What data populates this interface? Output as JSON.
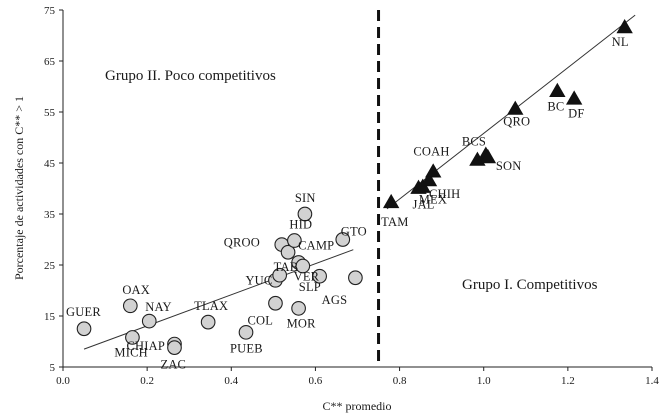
{
  "chart_data": {
    "type": "scatter",
    "xlabel": "C** promedio",
    "ylabel": "Porcentaje de actividades con C** > 1",
    "xlim": [
      0.0,
      1.4
    ],
    "ylim": [
      5,
      75
    ],
    "xticks": [
      "0.0",
      "0.2",
      "0.4",
      "0.6",
      "0.8",
      "1.0",
      "1.2",
      "1.4"
    ],
    "xtick_values": [
      0.0,
      0.2,
      0.4,
      0.6,
      0.8,
      1.0,
      1.2,
      1.4
    ],
    "yticks": [
      "5",
      "15",
      "25",
      "35",
      "45",
      "55",
      "65",
      "75"
    ],
    "ytick_values": [
      5,
      15,
      25,
      35,
      45,
      55,
      65,
      75
    ],
    "divider_x": 0.75,
    "group_labels": {
      "poco": "Grupo II. Poco competitivos",
      "competitivos": "Grupo I. Competitivos"
    },
    "series": [
      {
        "name": "Grupo II. Poco competitivos",
        "marker": "circle",
        "points": [
          {
            "label": "GUER",
            "x": 0.05,
            "y": 12.5
          },
          {
            "label": "OAX",
            "x": 0.16,
            "y": 17.0
          },
          {
            "label": "MICH",
            "x": 0.165,
            "y": 10.8
          },
          {
            "label": "NAY",
            "x": 0.205,
            "y": 14.0
          },
          {
            "label": "CHIAP",
            "x": 0.265,
            "y": 9.5
          },
          {
            "label": "ZAC",
            "x": 0.265,
            "y": 8.8
          },
          {
            "label": "TLAX",
            "x": 0.345,
            "y": 13.8
          },
          {
            "label": "PUEB",
            "x": 0.435,
            "y": 11.8
          },
          {
            "label": "COL",
            "x": 0.505,
            "y": 17.5
          },
          {
            "label": "YUC",
            "x": 0.505,
            "y": 22.0
          },
          {
            "label": "TAB",
            "x": 0.515,
            "y": 23.0
          },
          {
            "label": "QROO",
            "x": 0.52,
            "y": 29.0
          },
          {
            "label": "CAMP",
            "x": 0.535,
            "y": 27.5
          },
          {
            "label": "HID",
            "x": 0.55,
            "y": 29.8
          },
          {
            "label": "VER",
            "x": 0.56,
            "y": 25.5
          },
          {
            "label": "MOR",
            "x": 0.56,
            "y": 16.5
          },
          {
            "label": "SLP",
            "x": 0.57,
            "y": 24.8
          },
          {
            "label": "SIN",
            "x": 0.575,
            "y": 35.0
          },
          {
            "label": "AGS",
            "x": 0.61,
            "y": 22.8
          },
          {
            "label": "GTO",
            "x": 0.665,
            "y": 30.0
          },
          {
            "label": "",
            "x": 0.695,
            "y": 22.5
          }
        ],
        "trendline": {
          "x": [
            0.05,
            0.69
          ],
          "y": [
            8.5,
            28.0
          ]
        }
      },
      {
        "name": "Grupo I. Competitivos",
        "marker": "triangle",
        "points": [
          {
            "label": "TAM",
            "x": 0.78,
            "y": 37.2
          },
          {
            "label": "JAL",
            "x": 0.845,
            "y": 40.0
          },
          {
            "label": "MEX",
            "x": 0.855,
            "y": 40.2
          },
          {
            "label": "CHIH",
            "x": 0.87,
            "y": 41.5
          },
          {
            "label": "",
            "x": 0.88,
            "y": 43.2
          },
          {
            "label": "COAH",
            "x": 0.985,
            "y": 45.5
          },
          {
            "label": "BCS",
            "x": 1.005,
            "y": 46.5
          },
          {
            "label": "SON",
            "x": 1.01,
            "y": 46.0
          },
          {
            "label": "QRO",
            "x": 1.075,
            "y": 55.5
          },
          {
            "label": "BC",
            "x": 1.175,
            "y": 59.0
          },
          {
            "label": "DF",
            "x": 1.215,
            "y": 57.5
          },
          {
            "label": "NL",
            "x": 1.335,
            "y": 71.5
          }
        ],
        "trendline": {
          "x": [
            0.77,
            1.36
          ],
          "y": [
            36.0,
            74.0
          ]
        }
      }
    ]
  }
}
